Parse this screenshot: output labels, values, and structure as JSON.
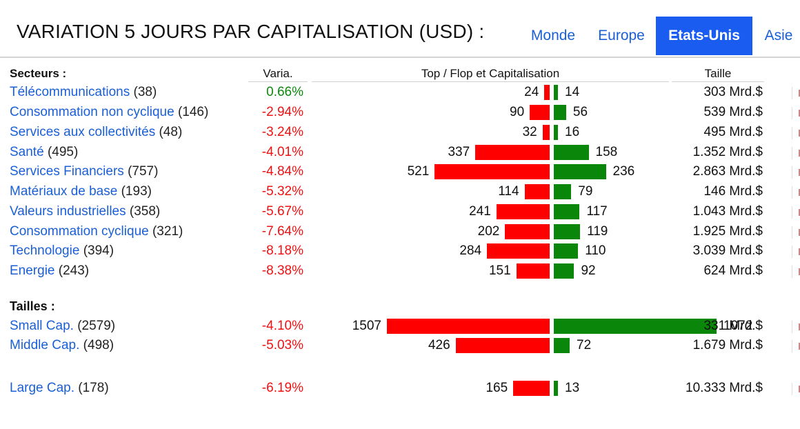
{
  "title": "VARIATION 5 JOURS PAR CAPITALISATION (USD) :",
  "tabs": [
    {
      "label": "Monde",
      "active": false
    },
    {
      "label": "Europe",
      "active": false
    },
    {
      "label": "Etats-Unis",
      "active": true
    },
    {
      "label": "Asie",
      "active": false
    }
  ],
  "columns": {
    "secteurs": "Secteurs :",
    "varia": "Varia.",
    "topflop": "Top / Flop et Capitalisation",
    "taille": "Taille"
  },
  "sections": {
    "tailles": "Tailles :"
  },
  "colors": {
    "flop_bar": "#ff0000",
    "top_bar": "#0a870a",
    "positive_text": "#0a8a0a",
    "negative_text": "#ee1111",
    "link": "#1a5fd6",
    "active_tab": "#1a5cf0"
  },
  "sector_rows": [
    {
      "name": "Télécommunications",
      "count": "(38)",
      "varia": "0.66%",
      "positive": true,
      "flop": "24",
      "top": "14",
      "size": "303 Mrd.$",
      "flop_value": 24,
      "top_value": 14
    },
    {
      "name": "Consommation non cyclique",
      "count": "(146)",
      "varia": "-2.94%",
      "positive": false,
      "flop": "90",
      "top": "56",
      "size": "539 Mrd.$",
      "flop_value": 90,
      "top_value": 56
    },
    {
      "name": "Services aux collectivités",
      "count": "(48)",
      "varia": "-3.24%",
      "positive": false,
      "flop": "32",
      "top": "16",
      "size": "495 Mrd.$",
      "flop_value": 32,
      "top_value": 16
    },
    {
      "name": "Santé",
      "count": "(495)",
      "varia": "-4.01%",
      "positive": false,
      "flop": "337",
      "top": "158",
      "size": "1.352 Mrd.$",
      "flop_value": 337,
      "top_value": 158
    },
    {
      "name": "Services Financiers",
      "count": "(757)",
      "varia": "-4.84%",
      "positive": false,
      "flop": "521",
      "top": "236",
      "size": "2.863 Mrd.$",
      "flop_value": 521,
      "top_value": 236
    },
    {
      "name": "Matériaux de base",
      "count": "(193)",
      "varia": "-5.32%",
      "positive": false,
      "flop": "114",
      "top": "79",
      "size": "146 Mrd.$",
      "flop_value": 114,
      "top_value": 79
    },
    {
      "name": "Valeurs industrielles",
      "count": "(358)",
      "varia": "-5.67%",
      "positive": false,
      "flop": "241",
      "top": "117",
      "size": "1.043 Mrd.$",
      "flop_value": 241,
      "top_value": 117
    },
    {
      "name": "Consommation cyclique",
      "count": "(321)",
      "varia": "-7.64%",
      "positive": false,
      "flop": "202",
      "top": "119",
      "size": "1.925 Mrd.$",
      "flop_value": 202,
      "top_value": 119
    },
    {
      "name": "Technologie",
      "count": "(394)",
      "varia": "-8.18%",
      "positive": false,
      "flop": "284",
      "top": "110",
      "size": "3.039 Mrd.$",
      "flop_value": 284,
      "top_value": 110
    },
    {
      "name": "Energie",
      "count": "(243)",
      "varia": "-8.38%",
      "positive": false,
      "flop": "151",
      "top": "92",
      "size": "624 Mrd.$",
      "flop_value": 151,
      "top_value": 92
    }
  ],
  "size_rows": [
    {
      "name": "Small Cap.",
      "count": "(2579)",
      "varia": "-4.10%",
      "positive": false,
      "flop": "1507",
      "top": "1072",
      "size": "331 Mrd.$",
      "flop_value": 1507,
      "top_value": 1072
    },
    {
      "name": "Middle Cap.",
      "count": "(498)",
      "varia": "-5.03%",
      "positive": false,
      "flop": "426",
      "top": "72",
      "size": "1.679 Mrd.$",
      "flop_value": 426,
      "top_value": 72
    },
    {
      "name": "Large Cap.",
      "count": "(178)",
      "varia": "-6.19%",
      "positive": false,
      "flop": "165",
      "top": "13",
      "size": "10.333 Mrd.$",
      "flop_value": 165,
      "top_value": 13
    }
  ]
}
